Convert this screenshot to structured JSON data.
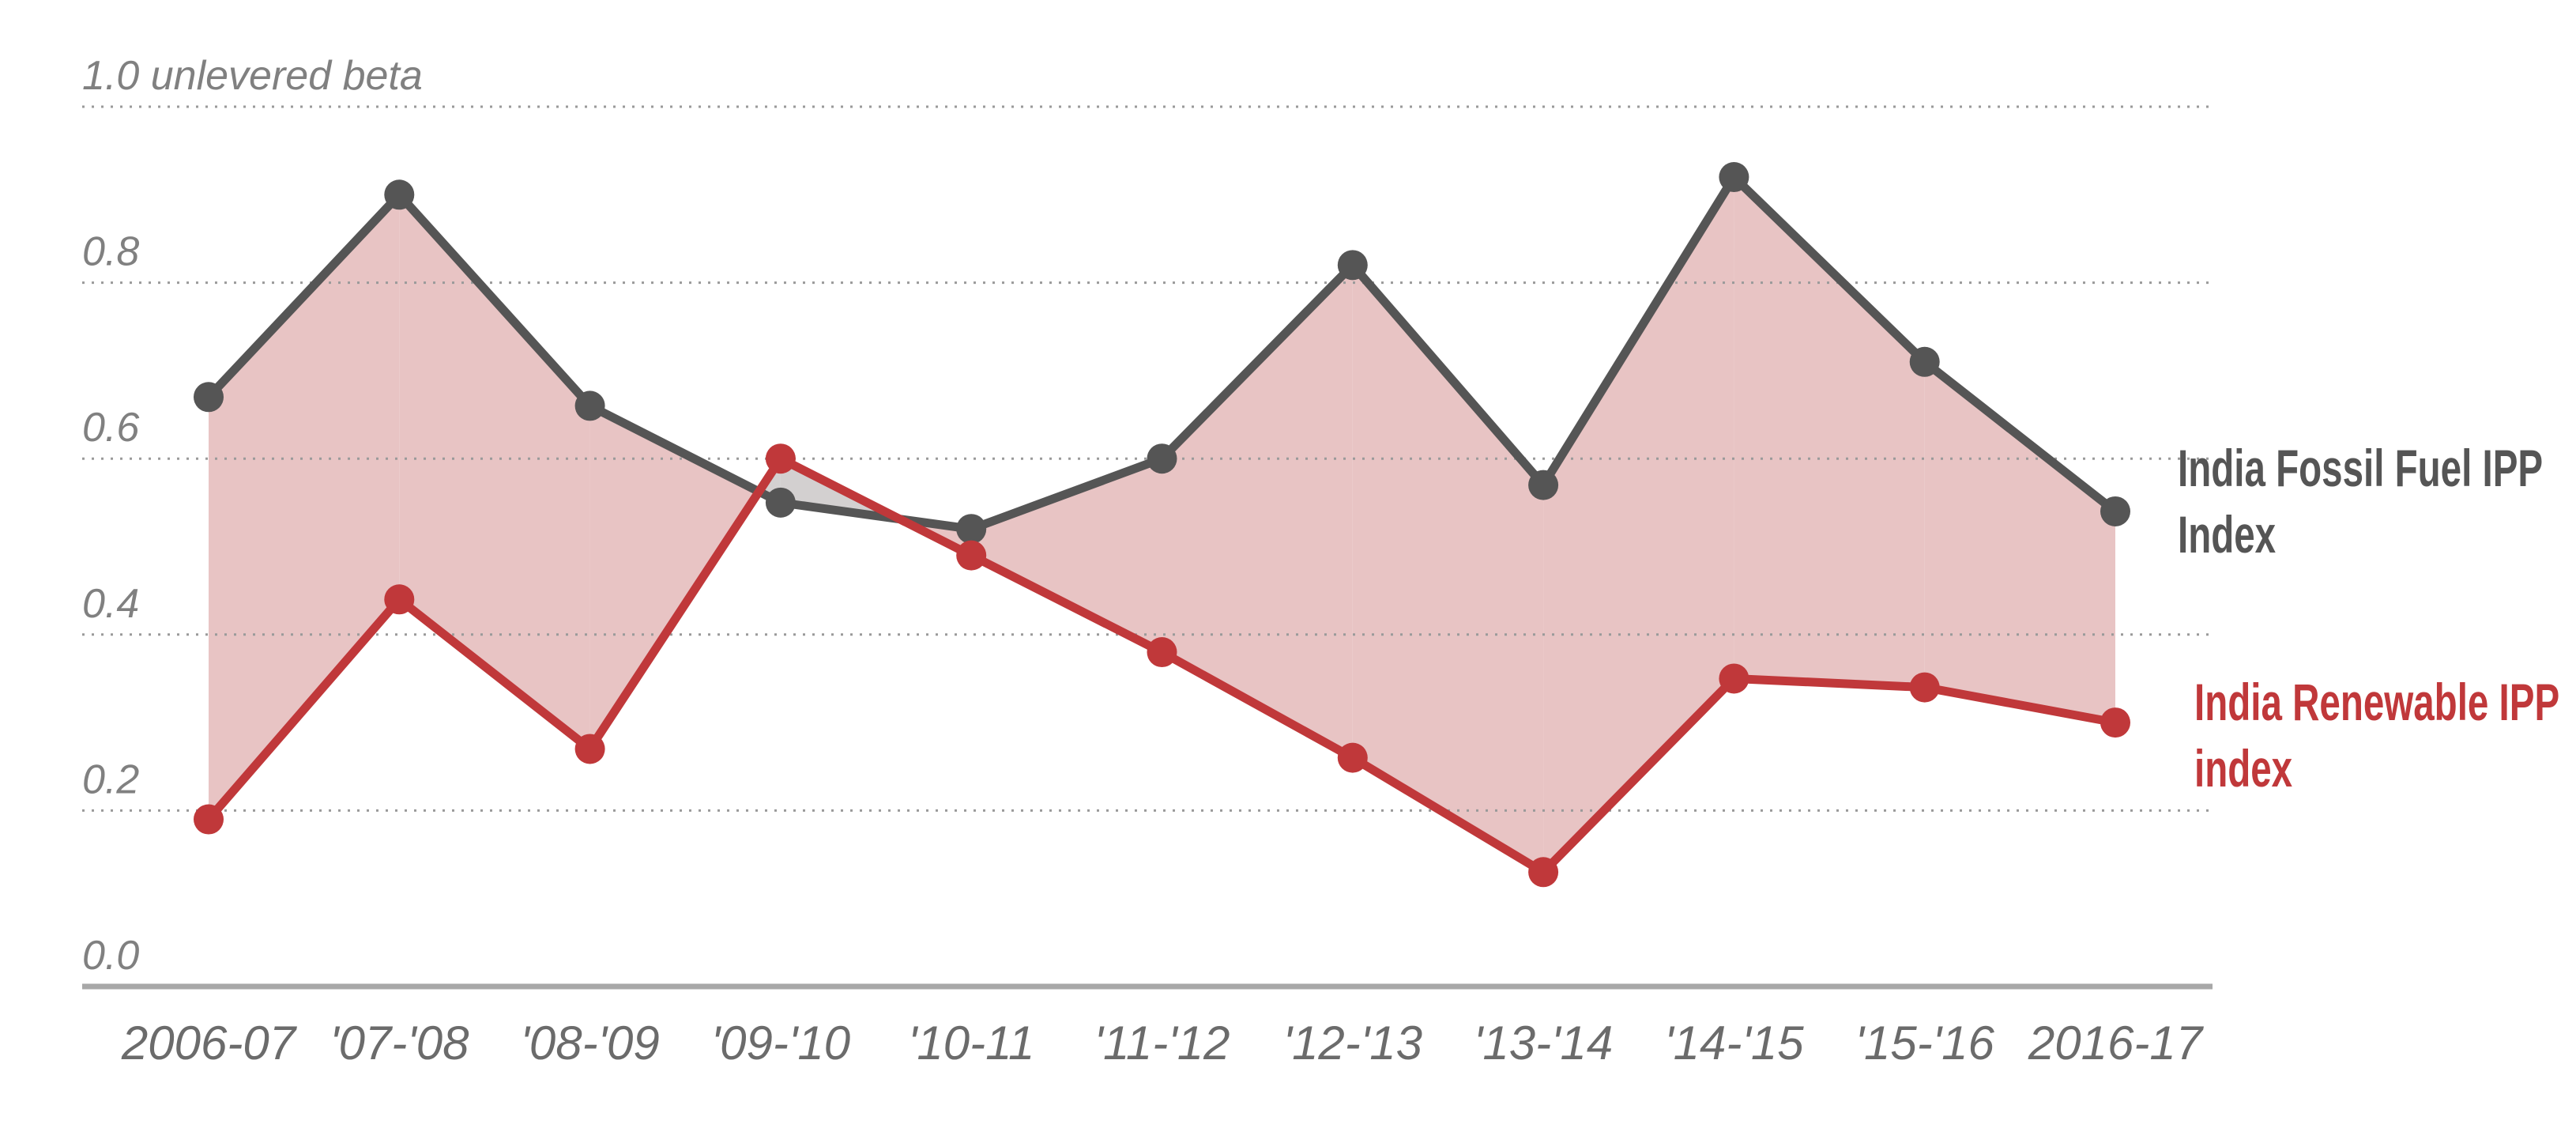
{
  "chart_data": {
    "type": "line",
    "categories": [
      "2006-07",
      "'07-'08",
      "'08-'09",
      "'09-'10",
      "'10-11",
      "'11-'12",
      "'12-'13",
      "'13-'14",
      "'14-'15",
      "'15-'16",
      "2016-17"
    ],
    "series": [
      {
        "name": "India Fossil Fuel IPP Index",
        "color": "#555555",
        "values": [
          0.67,
          0.9,
          0.66,
          0.55,
          0.52,
          0.6,
          0.82,
          0.57,
          0.92,
          0.71,
          0.54
        ]
      },
      {
        "name": "India Renewable IPP index",
        "color": "#c0383a",
        "values": [
          0.19,
          0.44,
          0.27,
          0.6,
          0.49,
          0.38,
          0.26,
          0.13,
          0.35,
          0.34,
          0.3
        ]
      }
    ],
    "ylim": [
      0,
      1
    ],
    "yticks": [
      {
        "value": 0,
        "label": "0.0"
      },
      0.2,
      0.4,
      0.6,
      0.8,
      {
        "value": 1,
        "label": "1.0 unlevered beta"
      }
    ],
    "grid": true,
    "fill_between": {
      "above_color": "#e8c4c4",
      "below_color": "#d3d0d0"
    }
  }
}
